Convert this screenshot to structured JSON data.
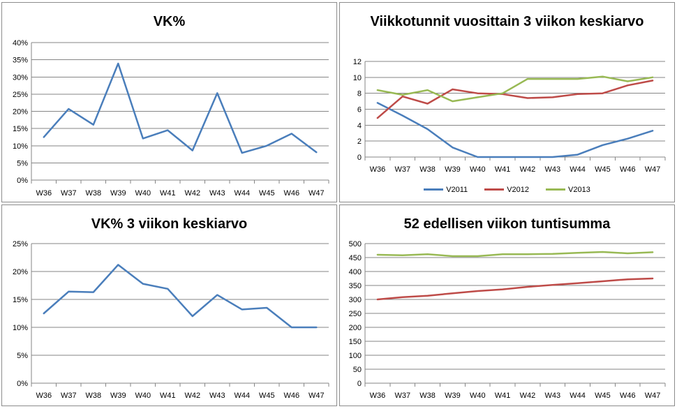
{
  "chart_data": [
    {
      "type": "line",
      "title": "VK%",
      "categories": [
        "W36",
        "W37",
        "W38",
        "W39",
        "W40",
        "W41",
        "W42",
        "W43",
        "W44",
        "W45",
        "W46",
        "W47"
      ],
      "series": [
        {
          "values": [
            0.125,
            0.207,
            0.161,
            0.339,
            0.121,
            0.145,
            0.086,
            0.253,
            0.079,
            0.1,
            0.135,
            0.081
          ],
          "color": "#4a7ebb"
        }
      ],
      "ylim": [
        0,
        0.4
      ],
      "yticks": [
        0,
        0.05,
        0.1,
        0.15,
        0.2,
        0.25,
        0.3,
        0.35,
        0.4
      ],
      "ytick_labels": [
        "0%",
        "5%",
        "10%",
        "15%",
        "20%",
        "25%",
        "30%",
        "35%",
        "40%"
      ],
      "grid": true,
      "legend": "none"
    },
    {
      "type": "line",
      "title": "Viikkotunnit vuosittain 3 viikon keskiarvo",
      "categories": [
        "W36",
        "W37",
        "W38",
        "W39",
        "W40",
        "W41",
        "W42",
        "W43",
        "W44",
        "W45",
        "W46",
        "W47"
      ],
      "series": [
        {
          "name": "V2011",
          "values": [
            6.8,
            5.2,
            3.5,
            1.2,
            0,
            0,
            0,
            0,
            0.3,
            1.5,
            2.3,
            3.3
          ],
          "color": "#4a7ebb"
        },
        {
          "name": "V2012",
          "values": [
            4.9,
            7.6,
            6.7,
            8.5,
            8.0,
            7.9,
            7.4,
            7.5,
            7.9,
            8.0,
            9.0,
            9.6
          ],
          "color": "#be4b48"
        },
        {
          "name": "V2013",
          "values": [
            8.4,
            7.8,
            8.4,
            7.0,
            7.5,
            8.0,
            9.8,
            9.8,
            9.8,
            10.1,
            9.5,
            10.0
          ],
          "color": "#98b954"
        }
      ],
      "ylim": [
        0,
        12
      ],
      "yticks": [
        0,
        2,
        4,
        6,
        8,
        10,
        12
      ],
      "ytick_labels": [
        "0",
        "2",
        "4",
        "6",
        "8",
        "10",
        "12"
      ],
      "grid": true,
      "legend": "bottom"
    },
    {
      "type": "line",
      "title": "VK% 3 viikon keskiarvo",
      "categories": [
        "W36",
        "W37",
        "W38",
        "W39",
        "W40",
        "W41",
        "W42",
        "W43",
        "W44",
        "W45",
        "W46",
        "W47"
      ],
      "series": [
        {
          "values": [
            0.125,
            0.164,
            0.163,
            0.212,
            0.178,
            0.169,
            0.12,
            0.158,
            0.132,
            0.135,
            0.1,
            0.1
          ],
          "color": "#4a7ebb"
        }
      ],
      "ylim": [
        0,
        0.25
      ],
      "yticks": [
        0,
        0.05,
        0.1,
        0.15,
        0.2,
        0.25
      ],
      "ytick_labels": [
        "0%",
        "5%",
        "10%",
        "15%",
        "20%",
        "25%"
      ],
      "grid": true,
      "legend": "none"
    },
    {
      "type": "line",
      "title": "52 edellisen viikon tuntisumma",
      "categories": [
        "W36",
        "W37",
        "W38",
        "W39",
        "W40",
        "W41",
        "W42",
        "W43",
        "W44",
        "W45",
        "W46",
        "W47"
      ],
      "series": [
        {
          "values": [
            300,
            308,
            313,
            322,
            330,
            336,
            345,
            352,
            358,
            365,
            372,
            375
          ],
          "color": "#be4b48"
        },
        {
          "values": [
            460,
            458,
            462,
            455,
            455,
            462,
            462,
            463,
            467,
            470,
            465,
            469
          ],
          "color": "#98b954"
        }
      ],
      "ylim": [
        0,
        500
      ],
      "yticks": [
        0,
        50,
        100,
        150,
        200,
        250,
        300,
        350,
        400,
        450,
        500
      ],
      "ytick_labels": [
        "0",
        "50",
        "100",
        "150",
        "200",
        "250",
        "300",
        "350",
        "400",
        "450",
        "500"
      ],
      "grid": true,
      "legend": "none"
    }
  ]
}
